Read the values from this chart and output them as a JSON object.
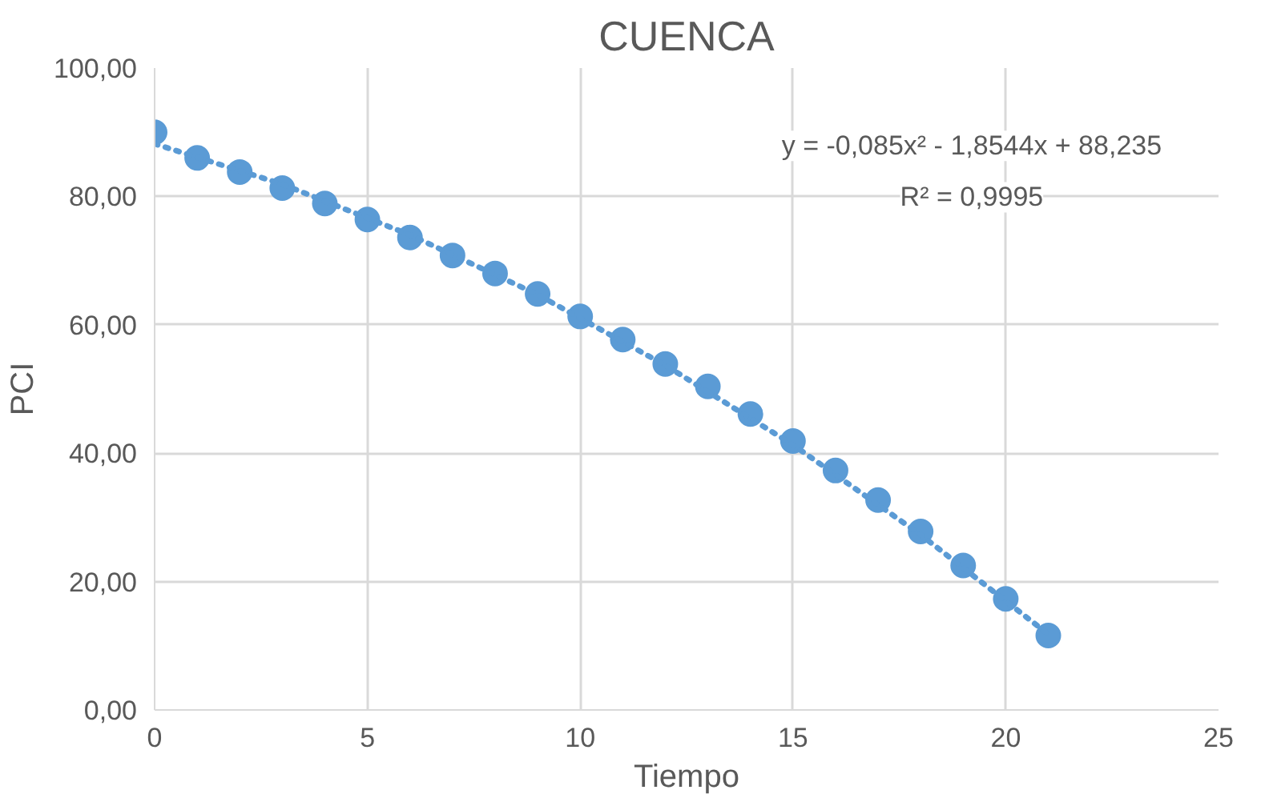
{
  "chart_data": {
    "type": "scatter",
    "title": "CUENCA",
    "xlabel": "Tiempo",
    "ylabel": "PCI",
    "x": [
      0,
      1,
      2,
      3,
      4,
      5,
      6,
      7,
      8,
      9,
      10,
      11,
      12,
      13,
      14,
      15,
      16,
      17,
      18,
      19,
      20,
      21
    ],
    "series": [
      {
        "color": "#5b9bd5",
        "marker": "circle",
        "values": [
          90,
          86,
          83.8,
          81.3,
          78.9,
          76.4,
          73.6,
          70.8,
          68,
          64.8,
          61.3,
          57.7,
          53.9,
          50.4,
          46.1,
          41.9,
          37.3,
          32.7,
          27.8,
          22.5,
          17.3,
          11.6
        ]
      },
      {
        "type": "line",
        "color": "#5b9bd5",
        "line_style": "dotted",
        "marker": "none",
        "x": [
          0,
          3,
          6,
          9,
          12,
          15,
          18,
          21
        ],
        "values": [
          88.2,
          81.9,
          74.0,
          64.7,
          53.7,
          41.3,
          27.3,
          11.8
        ]
      }
    ],
    "annotations": [
      "y = -0,085x² - 1,8544x + 88,235",
      "R² = 0,9995"
    ],
    "xlim": [
      0,
      25
    ],
    "xticks": [
      0,
      5,
      10,
      15,
      20,
      25
    ],
    "ylim": [
      0,
      100
    ],
    "yticks": [
      {
        "value": 0,
        "label": "0,00"
      },
      {
        "value": 20,
        "label": "20,00"
      },
      {
        "value": 40,
        "label": "40,00"
      },
      {
        "value": 60,
        "label": "60,00"
      },
      {
        "value": 80,
        "label": "80,00"
      },
      {
        "value": 100,
        "label": "100,00"
      }
    ],
    "grid": true
  }
}
